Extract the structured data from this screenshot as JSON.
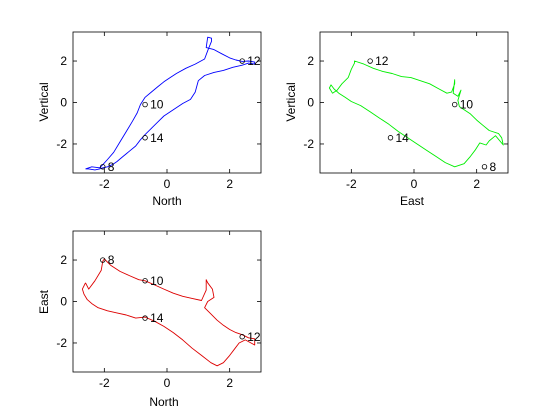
{
  "chart_data": [
    {
      "type": "line",
      "xlabel": "North",
      "ylabel": "Vertical",
      "xlim": [
        -3,
        3
      ],
      "ylim": [
        -3.4,
        3.4
      ],
      "xticks": [
        -2,
        0,
        2
      ],
      "yticks": [
        -2,
        0,
        2
      ],
      "color": "#0000ff",
      "series": [
        {
          "x": [
            -2.6,
            -2.4,
            -2.15,
            -2.05,
            -1.9,
            -1.7,
            -1.5,
            -1.3,
            -1.1,
            -0.95,
            -0.85,
            -0.7,
            -0.5,
            -0.3,
            -0.1,
            0.1,
            0.3,
            0.6,
            0.9,
            1.2,
            1.3,
            1.42,
            1.42,
            1.3,
            1.25,
            1.5,
            1.75,
            2.0,
            2.2,
            2.4,
            2.6,
            2.8,
            2.8,
            2.6,
            2.4,
            2.1,
            1.8,
            1.5,
            1.2,
            1.0,
            0.9,
            0.75,
            0.5,
            0.2,
            -0.1,
            -0.3,
            -0.5,
            -0.7,
            -0.85,
            -1.0,
            -1.2,
            -1.4,
            -1.6,
            -1.75,
            -1.9,
            -2.05,
            -2.15,
            -2.3,
            -2.5,
            -2.6
          ],
          "y": [
            -3.2,
            -3.1,
            -3.15,
            -3.0,
            -2.75,
            -2.4,
            -1.9,
            -1.4,
            -0.9,
            -0.5,
            -0.1,
            0.25,
            0.5,
            0.75,
            1.0,
            1.2,
            1.4,
            1.65,
            1.85,
            2.1,
            2.5,
            2.95,
            3.1,
            3.15,
            2.65,
            2.55,
            2.35,
            2.15,
            2.05,
            1.98,
            2.0,
            1.95,
            1.85,
            1.9,
            1.8,
            1.7,
            1.55,
            1.45,
            1.3,
            1.05,
            0.5,
            0.15,
            -0.05,
            -0.35,
            -0.65,
            -0.95,
            -1.25,
            -1.55,
            -1.8,
            -2.1,
            -2.35,
            -2.6,
            -2.85,
            -3.0,
            -3.1,
            -3.15,
            -3.2,
            -3.25,
            -3.2,
            -3.2
          ]
        }
      ],
      "annotations": [
        {
          "label": "8",
          "x": -2.05,
          "y": -3.1
        },
        {
          "label": "10",
          "x": -0.7,
          "y": -0.1
        },
        {
          "label": "12",
          "x": 2.4,
          "y": 2.0
        },
        {
          "label": "14",
          "x": -0.7,
          "y": -1.7
        }
      ]
    },
    {
      "type": "line",
      "xlabel": "East",
      "ylabel": "Vertical",
      "xlim": [
        -3,
        3
      ],
      "ylim": [
        -3.4,
        3.4
      ],
      "xticks": [
        -2,
        0,
        2
      ],
      "yticks": [
        -2,
        0,
        2
      ],
      "color": "#00ee00",
      "series": [
        {
          "x": [
            -2.1,
            -2.0,
            -1.9,
            -1.9,
            -1.6,
            -1.3,
            -1.0,
            -0.7,
            -0.4,
            -0.1,
            0.2,
            0.5,
            0.8,
            1.05,
            1.2,
            1.3,
            1.3,
            1.25,
            1.4,
            1.5,
            1.4,
            1.45,
            1.8,
            2.0,
            2.2,
            2.4,
            2.7,
            2.8,
            2.85,
            2.6,
            2.4,
            2.3,
            2.1,
            1.95,
            1.8,
            1.6,
            1.3,
            1.0,
            0.7,
            0.4,
            0.1,
            -0.2,
            -0.5,
            -0.8,
            -1.1,
            -1.4,
            -1.7,
            -2.0,
            -2.2,
            -2.4,
            -2.55,
            -2.65,
            -2.7,
            -2.6,
            -2.45,
            -2.3,
            -2.1
          ],
          "y": [
            1.2,
            1.6,
            1.9,
            2.0,
            1.85,
            1.65,
            1.5,
            1.4,
            1.25,
            1.2,
            1.05,
            0.9,
            0.65,
            0.45,
            0.5,
            0.9,
            1.1,
            0.45,
            0.3,
            0.6,
            0.1,
            -0.2,
            -0.55,
            -0.85,
            -1.1,
            -1.35,
            -1.5,
            -1.7,
            -2.05,
            -1.6,
            -1.85,
            -2.05,
            -1.95,
            -2.3,
            -2.6,
            -2.95,
            -3.1,
            -2.9,
            -2.6,
            -2.3,
            -2.0,
            -1.7,
            -1.4,
            -1.05,
            -0.75,
            -0.45,
            -0.15,
            0.05,
            0.25,
            0.45,
            0.65,
            0.85,
            0.7,
            0.45,
            0.6,
            0.9,
            1.2
          ]
        }
      ],
      "annotations": [
        {
          "label": "12",
          "x": -1.4,
          "y": 2.0
        },
        {
          "label": "10",
          "x": 1.3,
          "y": -0.1
        },
        {
          "label": "14",
          "x": -0.75,
          "y": -1.7
        },
        {
          "label": "8",
          "x": 2.25,
          "y": -3.1
        }
      ]
    },
    {
      "type": "line",
      "xlabel": "North",
      "ylabel": "East",
      "xlim": [
        -3,
        3
      ],
      "ylim": [
        -3.4,
        3.4
      ],
      "xticks": [
        -2,
        0,
        2
      ],
      "yticks": [
        -2,
        0,
        2
      ],
      "color": "#dd0000",
      "series": [
        {
          "x": [
            -2.6,
            -2.5,
            -2.3,
            -2.1,
            -2.05,
            -2.0,
            -1.8,
            -1.5,
            -1.2,
            -0.9,
            -0.7,
            -0.4,
            -0.1,
            0.2,
            0.5,
            0.8,
            1.1,
            1.25,
            1.25,
            1.3,
            1.45,
            1.5,
            1.3,
            1.2,
            1.4,
            1.6,
            1.8,
            2.0,
            2.2,
            2.4,
            2.6,
            2.8,
            2.8,
            2.5,
            2.3,
            2.15,
            2.0,
            1.8,
            1.6,
            1.4,
            1.1,
            0.8,
            0.5,
            0.2,
            -0.1,
            -0.4,
            -0.7,
            -1.0,
            -1.3,
            -1.6,
            -1.9,
            -2.2,
            -2.4,
            -2.55,
            -2.65,
            -2.7,
            -2.6
          ],
          "y": [
            0.9,
            0.6,
            1.0,
            1.5,
            1.95,
            2.05,
            1.75,
            1.45,
            1.25,
            1.05,
            1.0,
            0.8,
            0.6,
            0.4,
            0.25,
            0.15,
            0.05,
            0.55,
            1.05,
            0.9,
            0.6,
            0.2,
            0.0,
            -0.3,
            -0.6,
            -0.9,
            -1.15,
            -1.35,
            -1.5,
            -1.6,
            -1.75,
            -1.8,
            -2.1,
            -1.85,
            -2.0,
            -2.3,
            -2.6,
            -2.95,
            -3.1,
            -2.95,
            -2.6,
            -2.25,
            -1.85,
            -1.5,
            -1.2,
            -0.95,
            -0.75,
            -0.8,
            -0.65,
            -0.55,
            -0.45,
            -0.3,
            -0.1,
            0.1,
            0.35,
            0.6,
            0.9
          ]
        }
      ],
      "annotations": [
        {
          "label": "8",
          "x": -2.05,
          "y": 2.0
        },
        {
          "label": "10",
          "x": -0.7,
          "y": 1.0
        },
        {
          "label": "14",
          "x": -0.7,
          "y": -0.8
        },
        {
          "label": "12",
          "x": 2.4,
          "y": -1.7
        }
      ]
    }
  ]
}
